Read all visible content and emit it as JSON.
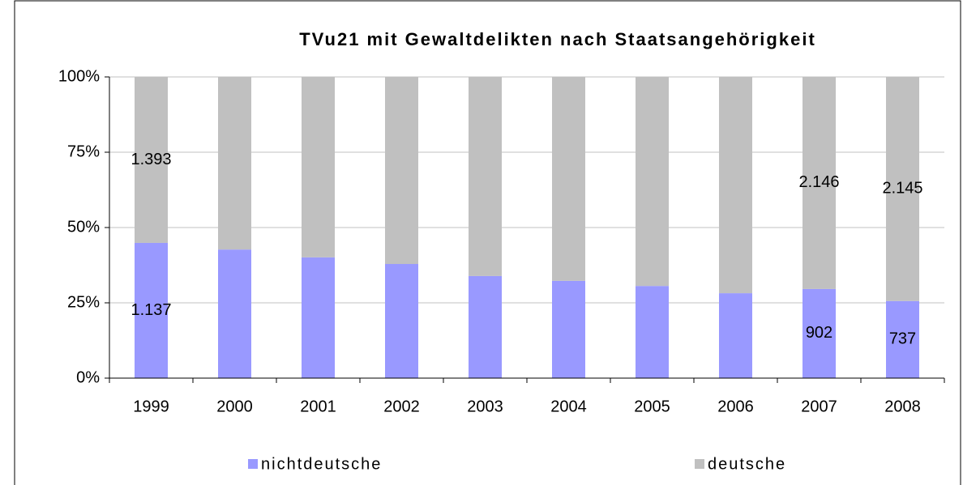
{
  "chart_data": {
    "type": "stacked_bar_percent",
    "title": "TVu21 mit Gewaltdelikten nach Staatsangehörigkeit",
    "categories": [
      "1999",
      "2000",
      "2001",
      "2002",
      "2003",
      "2004",
      "2005",
      "2006",
      "2007",
      "2008"
    ],
    "series": [
      {
        "name": "nichtdeutsche",
        "color": "#9999ff",
        "values": [
          44.9,
          42.7,
          40.1,
          37.9,
          33.9,
          32.3,
          30.6,
          28.2,
          29.6,
          25.6
        ],
        "count_labels": [
          "1.137",
          null,
          null,
          null,
          null,
          null,
          null,
          null,
          "902",
          "737"
        ]
      },
      {
        "name": "deutsche",
        "color": "#c0c0c0",
        "values": [
          55.1,
          57.3,
          59.9,
          62.1,
          66.1,
          67.7,
          69.4,
          71.8,
          70.4,
          74.4
        ],
        "count_labels": [
          "1.393",
          null,
          null,
          null,
          null,
          null,
          null,
          null,
          "2.146",
          "2.145"
        ]
      }
    ],
    "ylim": [
      0,
      100
    ],
    "yticks": [
      {
        "value": 0,
        "label": "0%"
      },
      {
        "value": 25,
        "label": "25%"
      },
      {
        "value": 50,
        "label": "50%"
      },
      {
        "value": 75,
        "label": "75%"
      },
      {
        "value": 100,
        "label": "100%"
      }
    ],
    "grid": true,
    "legend": "bottom"
  }
}
